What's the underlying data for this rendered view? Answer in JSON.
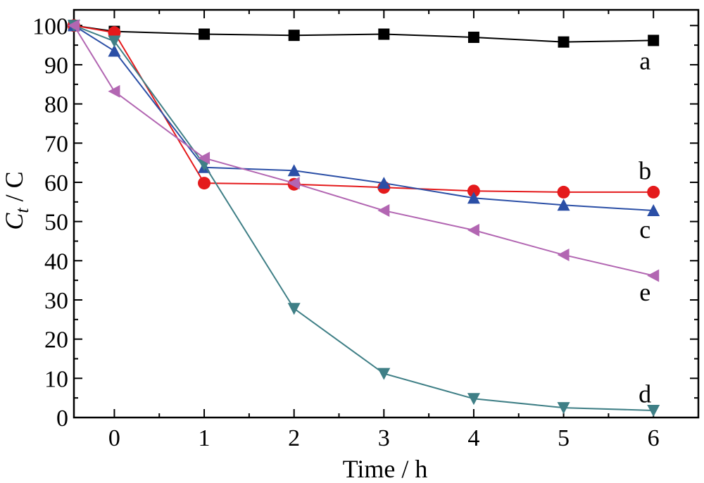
{
  "chart_data": {
    "type": "line",
    "title": "",
    "xlabel": "Time / h",
    "ylabel": {
      "main": "C",
      "sub": "t",
      "rest": " / C"
    },
    "xlim": [
      -0.45,
      6.5
    ],
    "ylim": [
      0,
      104
    ],
    "xticks": [
      "0",
      "1",
      "2",
      "3",
      "4",
      "5",
      "6"
    ],
    "yticks": [
      "0",
      "10",
      "20",
      "30",
      "40",
      "50",
      "60",
      "70",
      "80",
      "90",
      "100"
    ],
    "grid": false,
    "series": [
      {
        "name": "a",
        "color": "#000000",
        "marker": "square",
        "x": [
          -0.45,
          0,
          1,
          2,
          3,
          4,
          5,
          6
        ],
        "y": [
          100,
          98.5,
          97.8,
          97.5,
          97.8,
          97.0,
          95.8,
          96.2
        ]
      },
      {
        "name": "b",
        "color": "#e41a1c",
        "marker": "circle",
        "x": [
          -0.45,
          0,
          1,
          2,
          3,
          4,
          5,
          6
        ],
        "y": [
          100,
          98.2,
          59.8,
          59.5,
          58.7,
          57.8,
          57.5,
          57.5
        ]
      },
      {
        "name": "c",
        "color": "#2b4fa6",
        "marker": "triangle-up",
        "x": [
          -0.45,
          0,
          1,
          2,
          3,
          4,
          5,
          6
        ],
        "y": [
          100,
          93.5,
          63.8,
          63.0,
          59.8,
          56.0,
          54.2,
          52.8
        ]
      },
      {
        "name": "d",
        "color": "#3f7f86",
        "marker": "triangle-down",
        "x": [
          -0.45,
          0,
          1,
          2,
          3,
          4,
          5,
          6
        ],
        "y": [
          100,
          96.0,
          64.5,
          27.8,
          11.2,
          4.8,
          2.5,
          1.8
        ]
      },
      {
        "name": "e",
        "color": "#b266b2",
        "marker": "triangle-left",
        "x": [
          -0.45,
          0,
          1,
          2,
          3,
          4,
          5,
          6
        ],
        "y": [
          100,
          83.2,
          66.2,
          59.8,
          52.8,
          47.8,
          41.5,
          36.2
        ]
      }
    ],
    "series_labels": [
      {
        "text": "a",
        "x": 6.0,
        "y": 91
      },
      {
        "text": "b",
        "x": 6.0,
        "y": 63
      },
      {
        "text": "c",
        "x": 6.0,
        "y": 48
      },
      {
        "text": "e",
        "x": 6.0,
        "y": 32
      },
      {
        "text": "d",
        "x": 6.0,
        "y": 6
      }
    ]
  }
}
